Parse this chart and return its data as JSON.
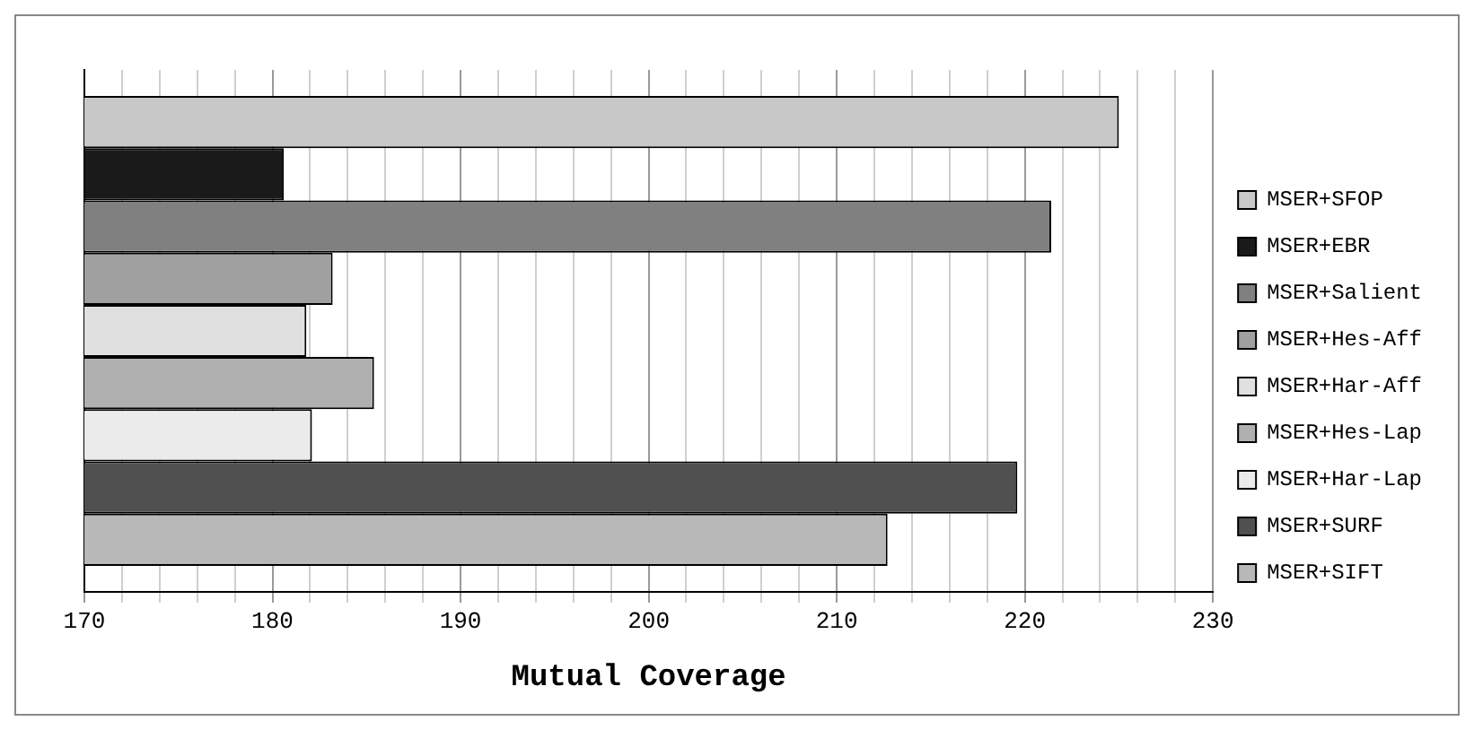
{
  "chart_data": {
    "type": "bar",
    "orientation": "horizontal",
    "xlabel": "Mutual Coverage",
    "categories": [
      null
    ],
    "series": [
      {
        "name": "MSER+SFOP",
        "color": "#c8c8c8",
        "values": [
          225.0
        ]
      },
      {
        "name": "MSER+EBR",
        "color": "#1a1a1a",
        "values": [
          180.6
        ]
      },
      {
        "name": "MSER+Salient",
        "color": "#808080",
        "values": [
          221.4
        ]
      },
      {
        "name": "MSER+Hes-Aff",
        "color": "#a0a0a0",
        "values": [
          183.2
        ]
      },
      {
        "name": "MSER+Har-Aff",
        "color": "#e0e0e0",
        "values": [
          181.8
        ]
      },
      {
        "name": "MSER+Hes-Lap",
        "color": "#b0b0b0",
        "values": [
          185.4
        ]
      },
      {
        "name": "MSER+Har-Lap",
        "color": "#ebebeb",
        "values": [
          182.1
        ]
      },
      {
        "name": "MSER+SURF",
        "color": "#505050",
        "values": [
          219.6
        ]
      },
      {
        "name": "MSER+SIFT",
        "color": "#b8b8b8",
        "values": [
          212.7
        ]
      }
    ],
    "xlim": [
      170,
      230
    ],
    "xticks": [
      170,
      {
        "value": 172,
        "label": null
      },
      {
        "value": 174,
        "label": null
      },
      {
        "value": 176,
        "label": null
      },
      {
        "value": 178,
        "label": null
      },
      180,
      {
        "value": 182,
        "label": null
      },
      {
        "value": 184,
        "label": null
      },
      {
        "value": 186,
        "label": null
      },
      {
        "value": 188,
        "label": null
      },
      190,
      {
        "value": 192,
        "label": null
      },
      {
        "value": 194,
        "label": null
      },
      {
        "value": 196,
        "label": null
      },
      {
        "value": 198,
        "label": null
      },
      200,
      {
        "value": 202,
        "label": null
      },
      {
        "value": 204,
        "label": null
      },
      {
        "value": 206,
        "label": null
      },
      {
        "value": 208,
        "label": null
      },
      210,
      {
        "value": 212,
        "label": null
      },
      {
        "value": 214,
        "label": null
      },
      {
        "value": 216,
        "label": null
      },
      {
        "value": 218,
        "label": null
      },
      220,
      {
        "value": 222,
        "label": null
      },
      {
        "value": 224,
        "label": null
      },
      {
        "value": 226,
        "label": null
      },
      {
        "value": 228,
        "label": null
      },
      230
    ],
    "grid": "x",
    "legend": "right"
  }
}
